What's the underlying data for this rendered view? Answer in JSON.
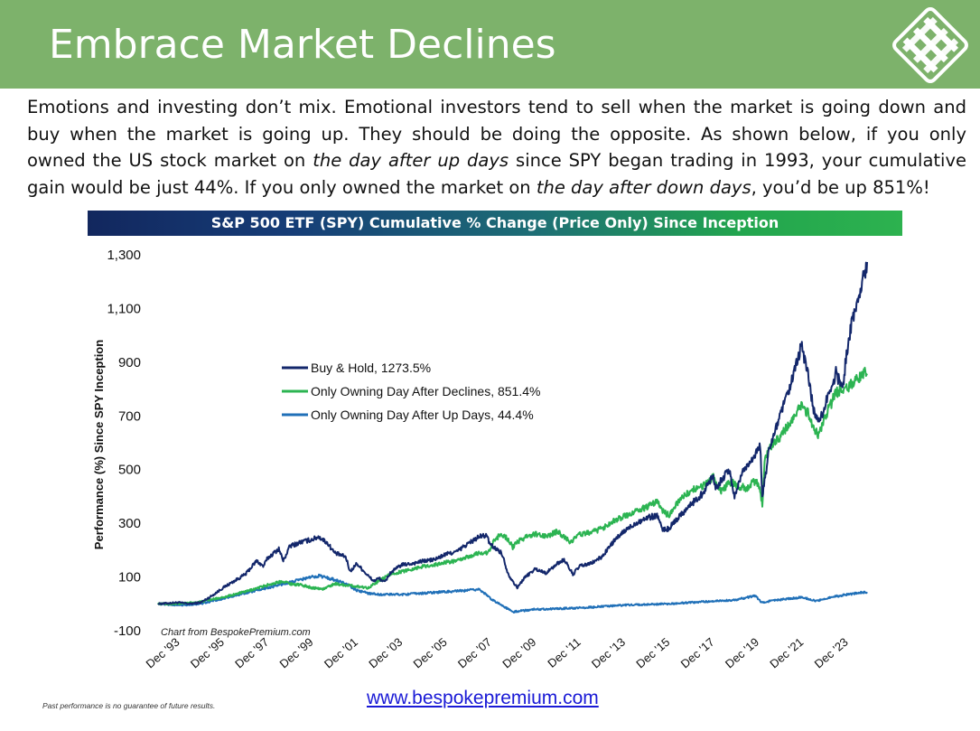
{
  "header": {
    "title": "Embrace Market Declines",
    "logo": "bespoke-logo-icon",
    "bg_color": "#7db26b"
  },
  "intro": {
    "line1": "Emotions and investing don’t mix.  Emotional investors tend to sell when the market is going down and",
    "line2": "buy when the market is going up.  They should be doing the opposite.  As shown below, if you only",
    "line3_a": "owned the US stock market on ",
    "line3_em": "the day after up days",
    "line3_b": " since SPY began trading in 1993, your cumulative",
    "line4_a": "gain would be just 44%.  If you only owned the market on ",
    "line4_em": "the day after down days",
    "line4_b": ", you’d be up 851%!"
  },
  "chart_data": {
    "type": "line",
    "title": "S&P 500 ETF (SPY) Cumulative % Change (Price Only) Since Inception",
    "ylabel": "Performance (%) Since SPY Inception",
    "xlabel": "",
    "ylim": [
      -100,
      1300
    ],
    "yticks": [
      -100,
      100,
      300,
      500,
      700,
      900,
      1100,
      1300
    ],
    "ytick_labels": [
      "-100",
      "100",
      "300",
      "500",
      "700",
      "900",
      "1,100",
      "1,300"
    ],
    "xlim": [
      1993.0,
      2024.9
    ],
    "xticks": [
      1993.92,
      1995.92,
      1997.92,
      1999.92,
      2001.92,
      2003.92,
      2005.92,
      2007.92,
      2009.92,
      2011.92,
      2013.92,
      2015.92,
      2017.92,
      2019.92,
      2021.92,
      2023.92
    ],
    "xtick_labels": [
      "Dec '93",
      "Dec '95",
      "Dec '97",
      "Dec '99",
      "Dec '01",
      "Dec '03",
      "Dec '05",
      "Dec '07",
      "Dec '09",
      "Dec '11",
      "Dec '13",
      "Dec '15",
      "Dec '17",
      "Dec '19",
      "Dec '21",
      "Dec '23"
    ],
    "legend_position": "upper-left",
    "source_note": "Chart from BespokePremium.com",
    "series": [
      {
        "name": "Buy & Hold, 1273.5%",
        "color": "#13276b",
        "points": [
          [
            1993.08,
            0
          ],
          [
            1994.0,
            5
          ],
          [
            1994.5,
            0
          ],
          [
            1995.0,
            5
          ],
          [
            1995.5,
            30
          ],
          [
            1996.0,
            60
          ],
          [
            1996.5,
            85
          ],
          [
            1997.0,
            110
          ],
          [
            1997.5,
            160
          ],
          [
            1997.8,
            140
          ],
          [
            1998.0,
            170
          ],
          [
            1998.5,
            205
          ],
          [
            1998.7,
            160
          ],
          [
            1999.0,
            215
          ],
          [
            1999.5,
            230
          ],
          [
            2000.0,
            240
          ],
          [
            2000.3,
            250
          ],
          [
            2000.7,
            225
          ],
          [
            2001.0,
            190
          ],
          [
            2001.5,
            175
          ],
          [
            2001.7,
            120
          ],
          [
            2002.0,
            150
          ],
          [
            2002.5,
            105
          ],
          [
            2002.75,
            85
          ],
          [
            2003.0,
            95
          ],
          [
            2003.25,
            80
          ],
          [
            2003.5,
            115
          ],
          [
            2004.0,
            145
          ],
          [
            2004.5,
            150
          ],
          [
            2005.0,
            160
          ],
          [
            2005.5,
            165
          ],
          [
            2006.0,
            185
          ],
          [
            2006.5,
            195
          ],
          [
            2007.0,
            225
          ],
          [
            2007.5,
            250
          ],
          [
            2007.8,
            255
          ],
          [
            2008.0,
            220
          ],
          [
            2008.5,
            190
          ],
          [
            2008.8,
            110
          ],
          [
            2009.0,
            85
          ],
          [
            2009.2,
            60
          ],
          [
            2009.5,
            95
          ],
          [
            2010.0,
            130
          ],
          [
            2010.5,
            115
          ],
          [
            2011.0,
            150
          ],
          [
            2011.3,
            165
          ],
          [
            2011.7,
            110
          ],
          [
            2012.0,
            140
          ],
          [
            2012.5,
            150
          ],
          [
            2013.0,
            175
          ],
          [
            2013.5,
            230
          ],
          [
            2014.0,
            270
          ],
          [
            2014.5,
            300
          ],
          [
            2015.0,
            320
          ],
          [
            2015.5,
            330
          ],
          [
            2015.7,
            275
          ],
          [
            2016.0,
            280
          ],
          [
            2016.5,
            330
          ],
          [
            2017.0,
            370
          ],
          [
            2017.5,
            410
          ],
          [
            2018.0,
            480
          ],
          [
            2018.1,
            430
          ],
          [
            2018.7,
            500
          ],
          [
            2018.95,
            400
          ],
          [
            2019.3,
            490
          ],
          [
            2019.9,
            560
          ],
          [
            2020.1,
            590
          ],
          [
            2020.2,
            400
          ],
          [
            2020.5,
            570
          ],
          [
            2020.9,
            680
          ],
          [
            2021.0,
            700
          ],
          [
            2021.5,
            820
          ],
          [
            2021.95,
            960
          ],
          [
            2022.2,
            880
          ],
          [
            2022.5,
            720
          ],
          [
            2022.8,
            680
          ],
          [
            2023.0,
            740
          ],
          [
            2023.5,
            860
          ],
          [
            2023.8,
            800
          ],
          [
            2024.0,
            950
          ],
          [
            2024.3,
            1080
          ],
          [
            2024.6,
            1160
          ],
          [
            2024.8,
            1240
          ],
          [
            2024.9,
            1273
          ]
        ]
      },
      {
        "name": "Only Owning Day After Declines, 851.4%",
        "color": "#2cb452",
        "points": [
          [
            1993.08,
            0
          ],
          [
            1994.0,
            0
          ],
          [
            1995.0,
            8
          ],
          [
            1996.0,
            25
          ],
          [
            1997.0,
            45
          ],
          [
            1998.0,
            70
          ],
          [
            1998.7,
            85
          ],
          [
            1999.0,
            75
          ],
          [
            1999.5,
            70
          ],
          [
            2000.0,
            60
          ],
          [
            2000.5,
            55
          ],
          [
            2001.0,
            75
          ],
          [
            2001.5,
            70
          ],
          [
            2002.0,
            65
          ],
          [
            2002.5,
            60
          ],
          [
            2003.0,
            85
          ],
          [
            2003.5,
            110
          ],
          [
            2004.0,
            120
          ],
          [
            2004.5,
            130
          ],
          [
            2005.0,
            140
          ],
          [
            2005.5,
            145
          ],
          [
            2006.0,
            155
          ],
          [
            2006.5,
            160
          ],
          [
            2007.0,
            175
          ],
          [
            2007.5,
            190
          ],
          [
            2007.9,
            190
          ],
          [
            2008.2,
            240
          ],
          [
            2008.5,
            260
          ],
          [
            2008.8,
            240
          ],
          [
            2009.0,
            210
          ],
          [
            2009.2,
            230
          ],
          [
            2009.6,
            250
          ],
          [
            2010.0,
            260
          ],
          [
            2010.5,
            250
          ],
          [
            2011.0,
            270
          ],
          [
            2011.6,
            230
          ],
          [
            2012.0,
            260
          ],
          [
            2012.5,
            265
          ],
          [
            2013.0,
            280
          ],
          [
            2013.5,
            310
          ],
          [
            2014.0,
            325
          ],
          [
            2014.5,
            345
          ],
          [
            2015.0,
            360
          ],
          [
            2015.5,
            380
          ],
          [
            2015.8,
            340
          ],
          [
            2016.0,
            330
          ],
          [
            2016.5,
            390
          ],
          [
            2017.0,
            420
          ],
          [
            2017.5,
            440
          ],
          [
            2018.0,
            470
          ],
          [
            2018.3,
            420
          ],
          [
            2018.8,
            455
          ],
          [
            2019.0,
            440
          ],
          [
            2019.5,
            430
          ],
          [
            2019.9,
            460
          ],
          [
            2020.1,
            420
          ],
          [
            2020.2,
            370
          ],
          [
            2020.3,
            530
          ],
          [
            2020.6,
            590
          ],
          [
            2021.0,
            620
          ],
          [
            2021.5,
            680
          ],
          [
            2022.0,
            740
          ],
          [
            2022.3,
            700
          ],
          [
            2022.7,
            620
          ],
          [
            2023.0,
            690
          ],
          [
            2023.5,
            790
          ],
          [
            2024.0,
            800
          ],
          [
            2024.4,
            830
          ],
          [
            2024.7,
            860
          ],
          [
            2024.9,
            851
          ]
        ]
      },
      {
        "name": "Only Owning Day After Up Days, 44.4%",
        "color": "#2070b8",
        "points": [
          [
            1993.08,
            0
          ],
          [
            1994.0,
            -5
          ],
          [
            1995.0,
            0
          ],
          [
            1996.0,
            20
          ],
          [
            1997.0,
            40
          ],
          [
            1998.0,
            60
          ],
          [
            1999.0,
            80
          ],
          [
            1999.7,
            95
          ],
          [
            2000.3,
            105
          ],
          [
            2001.0,
            90
          ],
          [
            2001.5,
            75
          ],
          [
            2002.0,
            50
          ],
          [
            2002.5,
            40
          ],
          [
            2003.0,
            35
          ],
          [
            2004.0,
            35
          ],
          [
            2005.0,
            40
          ],
          [
            2006.0,
            45
          ],
          [
            2007.0,
            50
          ],
          [
            2007.5,
            55
          ],
          [
            2008.0,
            20
          ],
          [
            2008.5,
            -5
          ],
          [
            2009.0,
            -30
          ],
          [
            2009.5,
            -25
          ],
          [
            2010.0,
            -20
          ],
          [
            2011.0,
            -18
          ],
          [
            2012.0,
            -15
          ],
          [
            2013.0,
            -10
          ],
          [
            2014.0,
            -5
          ],
          [
            2015.0,
            -2
          ],
          [
            2016.0,
            0
          ],
          [
            2017.0,
            5
          ],
          [
            2018.0,
            10
          ],
          [
            2019.0,
            15
          ],
          [
            2019.9,
            30
          ],
          [
            2020.15,
            5
          ],
          [
            2020.5,
            10
          ],
          [
            2021.0,
            15
          ],
          [
            2021.5,
            20
          ],
          [
            2022.0,
            25
          ],
          [
            2022.6,
            10
          ],
          [
            2023.0,
            20
          ],
          [
            2024.0,
            35
          ],
          [
            2024.9,
            44
          ]
        ]
      }
    ]
  },
  "footer": {
    "disclaimer": "Past performance is no guarantee of future results.",
    "url": "www.bespokepremium.com"
  }
}
